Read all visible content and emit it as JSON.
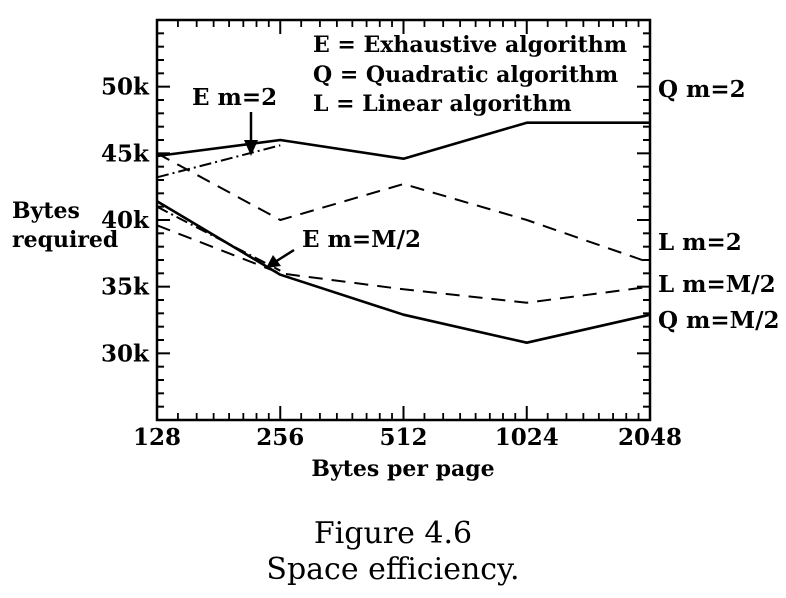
{
  "chart_data": {
    "type": "line",
    "xlabel": "Bytes per page",
    "ylabel": [
      "Bytes",
      "required"
    ],
    "x_scale": "log2",
    "xlim": [
      128,
      2048
    ],
    "ylim": [
      25,
      55
    ],
    "x_ticks": [
      128,
      256,
      512,
      1024,
      2048
    ],
    "y_ticks": [
      30,
      35,
      40,
      45,
      50
    ],
    "y_tick_labels": [
      "30k",
      "35k",
      "40k",
      "45k",
      "50k"
    ],
    "legend": [
      "E = Exhaustive algorithm",
      "Q = Quadratic algorithm",
      "L = Linear algorithm"
    ],
    "series": [
      {
        "name": "Q m=2",
        "style": "solid",
        "x": [
          128,
          256,
          512,
          1024,
          2048
        ],
        "y": [
          44.8,
          46.0,
          44.6,
          47.3,
          47.3
        ]
      },
      {
        "name": "L m=2",
        "style": "dashed",
        "x": [
          128,
          256,
          512,
          1024,
          2048
        ],
        "y": [
          45.0,
          40.0,
          42.7,
          40.0,
          36.8
        ]
      },
      {
        "name": "L m=M/2",
        "style": "dashed",
        "x": [
          128,
          256,
          512,
          1024,
          2048
        ],
        "y": [
          39.6,
          36.0,
          34.8,
          33.8,
          35.0
        ]
      },
      {
        "name": "Q m=M/2",
        "style": "solid",
        "x": [
          128,
          256,
          512,
          1024,
          2048
        ],
        "y": [
          41.4,
          35.9,
          32.9,
          30.8,
          32.9
        ]
      },
      {
        "name": "E m=2",
        "style": "dashdot",
        "x": [
          128,
          256
        ],
        "y": [
          43.2,
          45.6
        ]
      },
      {
        "name": "E m=M/2",
        "style": "dashdot",
        "x": [
          128,
          256
        ],
        "y": [
          41.0,
          36.2
        ]
      }
    ]
  },
  "caption": {
    "line1": "Figure 4.6",
    "line2": "Space efficiency."
  }
}
